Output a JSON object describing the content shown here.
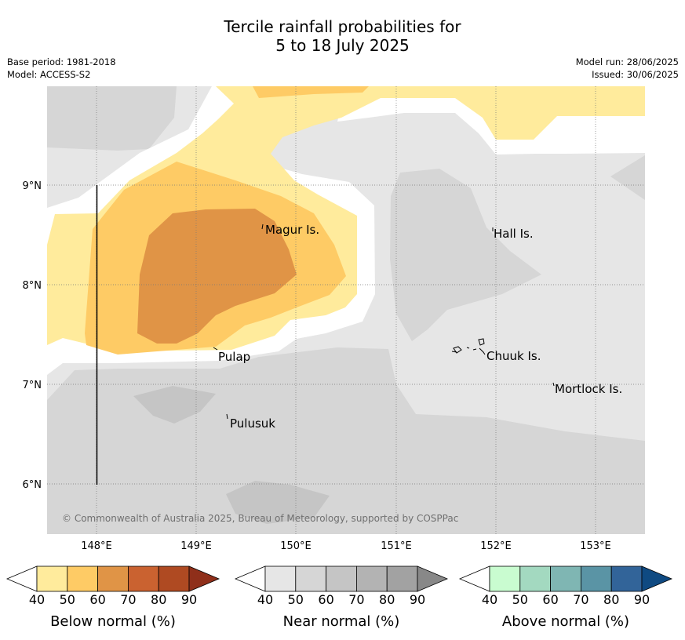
{
  "title": {
    "line1": "Tercile rainfall probabilities for",
    "line2": "5 to 18 July 2025"
  },
  "meta_left": {
    "base_period": "Base period: 1981-2018",
    "model": "Model: ACCESS-S2"
  },
  "meta_right": {
    "model_run": "Model run: 28/06/2025",
    "issued": "Issued: 30/06/2025"
  },
  "map": {
    "lon_labels": [
      "148°E",
      "149°E",
      "150°E",
      "151°E",
      "152°E",
      "153°E"
    ],
    "lat_labels": [
      "9°N",
      "8°N",
      "7°N",
      "6°N"
    ],
    "places": [
      {
        "name": "Magur Is."
      },
      {
        "name": "Hall Is."
      },
      {
        "name": "Pulap"
      },
      {
        "name": "Chuuk Is."
      },
      {
        "name": "Mortlock Is."
      },
      {
        "name": "Pulusuk"
      }
    ],
    "copyright": "© Commonwealth of Australia 2025, Bureau of Meteorology, supported by COSPPac"
  },
  "colors": {
    "below": [
      "#ffeb9c",
      "#fecb65",
      "#e09446",
      "#ca6230",
      "#af4a22",
      "#8f2f1a"
    ],
    "near": [
      "#e6e6e6",
      "#d6d6d6",
      "#c5c5c5",
      "#b3b3b3",
      "#a2a2a2",
      "#888888"
    ],
    "above": [
      "#c9fcd0",
      "#a3d9c0",
      "#7fb6b3",
      "#5a94a5",
      "#326499",
      "#0f4a82"
    ]
  },
  "legends": [
    {
      "title": "Below normal (%)",
      "ticks": [
        "40",
        "50",
        "60",
        "70",
        "80",
        "90"
      ]
    },
    {
      "title": "Near normal (%)",
      "ticks": [
        "40",
        "50",
        "60",
        "70",
        "80",
        "90"
      ]
    },
    {
      "title": "Above normal (%)",
      "ticks": [
        "40",
        "50",
        "60",
        "70",
        "80",
        "90"
      ]
    }
  ]
}
